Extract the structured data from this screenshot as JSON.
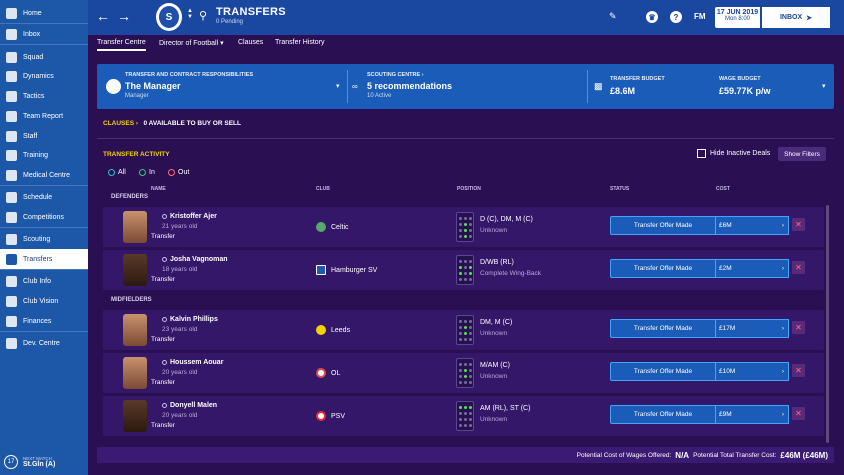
{
  "sidebar": {
    "items": [
      {
        "label": "Home",
        "icon": "home-icon"
      },
      {
        "label": "Inbox",
        "icon": "inbox-icon"
      },
      {
        "label": "Squad",
        "icon": "squad-icon"
      },
      {
        "label": "Dynamics",
        "icon": "dynamics-icon"
      },
      {
        "label": "Tactics",
        "icon": "tactics-icon"
      },
      {
        "label": "Team Report",
        "icon": "team-report-icon"
      },
      {
        "label": "Staff",
        "icon": "staff-icon"
      },
      {
        "label": "Training",
        "icon": "training-icon"
      },
      {
        "label": "Medical Centre",
        "icon": "medical-icon"
      },
      {
        "label": "Schedule",
        "icon": "schedule-icon"
      },
      {
        "label": "Competitions",
        "icon": "trophy-icon"
      },
      {
        "label": "Scouting",
        "icon": "scouting-icon"
      },
      {
        "label": "Transfers",
        "icon": "transfers-icon"
      },
      {
        "label": "Club Info",
        "icon": "club-info-icon"
      },
      {
        "label": "Club Vision",
        "icon": "club-vision-icon"
      },
      {
        "label": "Finances",
        "icon": "finances-icon"
      },
      {
        "label": "Dev. Centre",
        "icon": "dev-centre-icon"
      }
    ],
    "next_match": {
      "round": "17",
      "label": "NEXT MATCH",
      "value": "St.Gln (A)"
    }
  },
  "header": {
    "title": "TRANSFERS",
    "pending": "0 Pending",
    "fm": "FM",
    "date": "17 JUN 2019",
    "time": "Mon 8:00",
    "inbox": "INBOX",
    "crest_letter": "S"
  },
  "tabs": [
    "Transfer Centre",
    "Director of Football",
    "Clauses",
    "Transfer History"
  ],
  "info": {
    "resp_label": "TRANSFER AND CONTRACT RESPONSIBILITIES",
    "resp_value": "The Manager",
    "resp_sub": "Manager",
    "scout_label": "SCOUTING CENTRE",
    "scout_value": "5 recommendations",
    "scout_sub": "10 Active",
    "budget_label": "TRANSFER BUDGET",
    "budget_value": "£8.6M",
    "wage_label": "WAGE BUDGET",
    "wage_value": "£59.77K p/w"
  },
  "clauses": {
    "label": "CLAUSES",
    "text": "0 AVAILABLE TO BUY OR SELL"
  },
  "activity": {
    "title": "TRANSFER ACTIVITY",
    "hide_inactive": "Hide Inactive Deals",
    "show_filters": "Show Filters",
    "filters": [
      "All",
      "In",
      "Out"
    ],
    "columns": [
      "NAME",
      "CLUB",
      "POSITION",
      "STATUS",
      "COST"
    ],
    "sections": [
      "DEFENDERS",
      "MIDFIELDERS"
    ],
    "rows": [
      {
        "name": "Kristoffer Ajer",
        "age": "21 years old",
        "type": "Transfer",
        "club": "Celtic",
        "club_color": "#57a86b",
        "position": "D (C), DM, M (C)",
        "pos_sub": "Unknown",
        "status": "Transfer Offer Made",
        "cost": "£6M"
      },
      {
        "name": "Josha Vagnoman",
        "age": "18 years old",
        "type": "Transfer",
        "club": "Hamburger SV",
        "club_color": "#1f5bb3",
        "position": "D/WB (RL)",
        "pos_sub": "Complete Wing-Back",
        "status": "Transfer Offer Made",
        "cost": "£2M"
      },
      {
        "name": "Kalvin Phillips",
        "age": "23 years old",
        "type": "Transfer",
        "club": "Leeds",
        "club_color": "#f2d200",
        "position": "DM, M (C)",
        "pos_sub": "Unknown",
        "status": "Transfer Offer Made",
        "cost": "£17M"
      },
      {
        "name": "Houssem Aouar",
        "age": "20 years old",
        "type": "Transfer",
        "club": "OL",
        "club_color": "#e24a4a",
        "position": "M/AM (C)",
        "pos_sub": "Unknown",
        "status": "Transfer Offer Made",
        "cost": "£10M"
      },
      {
        "name": "Donyell Malen",
        "age": "20 years old",
        "type": "Transfer",
        "club": "PSV",
        "club_color": "#e03030",
        "position": "AM (RL), ST (C)",
        "pos_sub": "Unknown",
        "status": "Transfer Offer Made",
        "cost": "£9M"
      }
    ]
  },
  "footer": {
    "wages_label": "Potential Cost of Wages Offered:",
    "wages_value": "N/A",
    "total_label": "Potential Total Transfer Cost:",
    "total_value": "£46M (£46M)"
  }
}
